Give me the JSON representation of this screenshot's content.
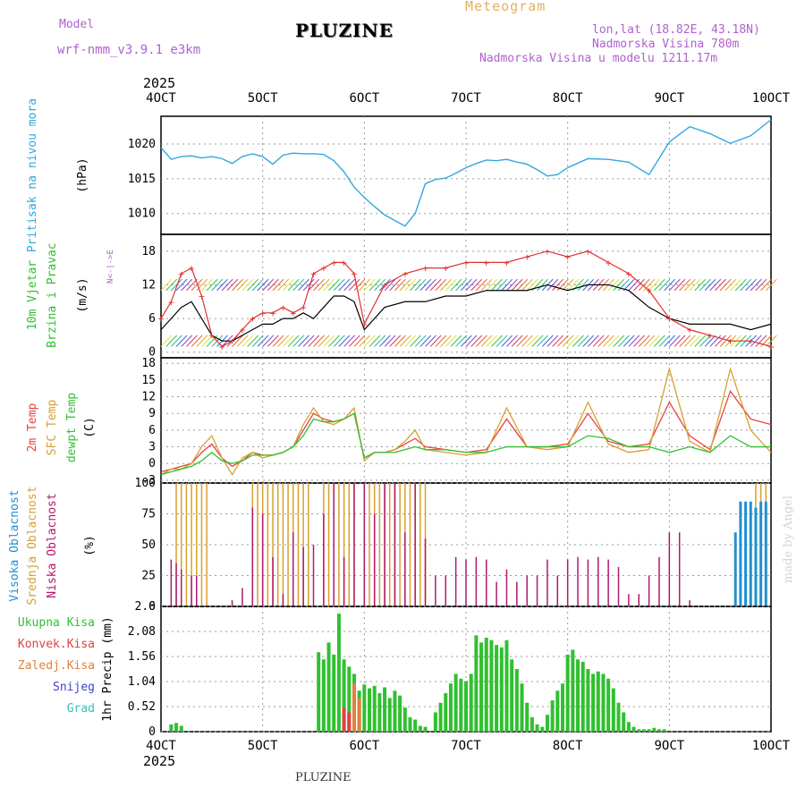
{
  "header": {
    "model_label": "Model",
    "model_name": "wrf-nmm_v3.9.1 e3km",
    "title": "PLUZINE",
    "subtitle": "Meteogram",
    "lonlat": "lon,lat (18.82E, 43.18N)",
    "elevation": "Nadmorska Visina 780m",
    "model_elevation": "Nadmorska Visina u modelu 1211.17m"
  },
  "footer": {
    "location": "PLUZINE",
    "watermark": "made by Angel"
  },
  "time_axis": {
    "year": "2025",
    "ticks": [
      "4OCT",
      "5OCT",
      "6OCT",
      "7OCT",
      "8OCT",
      "9OCT",
      "10OCT"
    ]
  },
  "colors": {
    "pressure": "#30a8e0",
    "wind_speed": "#000000",
    "gust": "#e03030",
    "t2m": "#e84040",
    "tsfc": "#d8a030",
    "dewpt": "#30c030",
    "cloud_high": "#2090d0",
    "cloud_mid": "#d8a030",
    "cloud_low": "#b01870",
    "precip_total": "#30c030",
    "precip_conv": "#e04040",
    "precip_frz": "#e08040",
    "snow": "#4040d0",
    "hail": "#30c0c0"
  },
  "chart_data": [
    {
      "id": "pressure",
      "type": "line",
      "title": "Pritisak na nivou mora",
      "ylabel": "(hPa)",
      "ylim": [
        1007,
        1024
      ],
      "yticks": [
        "1010",
        "1015",
        "1020"
      ],
      "yticks_values": [
        1010,
        1015,
        1020
      ],
      "series": [
        {
          "name": "MSLP",
          "x": [
            0,
            0.1,
            0.2,
            0.3,
            0.4,
            0.5,
            0.6,
            0.7,
            0.8,
            0.9,
            1,
            1.1,
            1.2,
            1.3,
            1.4,
            1.5,
            1.6,
            1.7,
            1.8,
            1.9,
            2,
            2.1,
            2.2,
            2.3,
            2.4,
            2.5,
            2.6,
            2.7,
            2.8,
            2.9,
            3,
            3.1,
            3.2,
            3.3,
            3.4,
            3.5,
            3.6,
            3.7,
            3.8,
            3.9,
            4,
            4.2,
            4.4,
            4.6,
            4.8,
            5,
            5.2,
            5.4,
            5.6,
            5.8,
            6
          ],
          "values": [
            1019.5,
            1017.8,
            1018.2,
            1018.3,
            1018.0,
            1018.2,
            1017.9,
            1017.2,
            1018.2,
            1018.6,
            1018.2,
            1017.1,
            1018.4,
            1018.7,
            1018.6,
            1018.6,
            1018.5,
            1017.6,
            1016.0,
            1013.8,
            1012.3,
            1011.0,
            1009.8,
            1009.0,
            1008.2,
            1010.0,
            1014.3,
            1014.9,
            1015.1,
            1015.8,
            1016.6,
            1017.2,
            1017.7,
            1017.6,
            1017.8,
            1017.4,
            1017.1,
            1016.3,
            1015.4,
            1015.6,
            1016.6,
            1017.9,
            1017.8,
            1017.4,
            1015.6,
            1020.3,
            1022.5,
            1021.5,
            1020.1,
            1021.2,
            1023.5
          ]
        }
      ]
    },
    {
      "id": "wind",
      "type": "line",
      "title": "10m Vjetar",
      "title2": "Brzina i Pravac",
      "ylabel": "(m/s)",
      "compass": "N<-|->E",
      "ylim": [
        -1,
        21
      ],
      "yticks": [
        "0",
        "6",
        "12",
        "18"
      ],
      "yticks_values": [
        0,
        6,
        12,
        18
      ],
      "series": [
        {
          "name": "speed",
          "x": [
            0,
            0.1,
            0.2,
            0.3,
            0.4,
            0.5,
            0.6,
            0.7,
            0.8,
            0.9,
            1,
            1.1,
            1.2,
            1.3,
            1.4,
            1.5,
            1.6,
            1.7,
            1.8,
            1.9,
            2,
            2.2,
            2.4,
            2.6,
            2.8,
            3,
            3.2,
            3.4,
            3.6,
            3.8,
            4,
            4.2,
            4.4,
            4.6,
            4.8,
            5,
            5.2,
            5.4,
            5.6,
            5.8,
            6
          ],
          "values": [
            4,
            6,
            8,
            9,
            6,
            3,
            2,
            2,
            3,
            4,
            5,
            5,
            6,
            6,
            7,
            6,
            8,
            10,
            10,
            9,
            4,
            8,
            9,
            9,
            10,
            10,
            11,
            11,
            11,
            12,
            11,
            12,
            12,
            11,
            8,
            6,
            5,
            5,
            5,
            4,
            5
          ]
        },
        {
          "name": "gust",
          "x": [
            0,
            0.1,
            0.2,
            0.3,
            0.4,
            0.5,
            0.6,
            0.7,
            0.8,
            0.9,
            1,
            1.1,
            1.2,
            1.3,
            1.4,
            1.5,
            1.6,
            1.7,
            1.8,
            1.9,
            2,
            2.2,
            2.4,
            2.6,
            2.8,
            3,
            3.2,
            3.4,
            3.6,
            3.8,
            4,
            4.2,
            4.4,
            4.6,
            4.8,
            5,
            5.2,
            5.4,
            5.6,
            5.8,
            6
          ],
          "values": [
            6,
            9,
            14,
            15,
            10,
            3,
            1,
            2,
            4,
            6,
            7,
            7,
            8,
            7,
            8,
            14,
            15,
            16,
            16,
            14,
            5,
            12,
            14,
            15,
            15,
            16,
            16,
            16,
            17,
            18,
            17,
            18,
            16,
            14,
            11,
            6,
            4,
            3,
            2,
            2,
            1
          ]
        }
      ]
    },
    {
      "id": "temperature",
      "type": "line",
      "titles": [
        "2m Temp",
        "SFC Temp",
        "dewpt Temp"
      ],
      "ylabel": "(C)",
      "ylim": [
        -3.5,
        19
      ],
      "yticks": [
        "-3",
        "0",
        "3",
        "6",
        "9",
        "12",
        "15",
        "18"
      ],
      "yticks_values": [
        -3,
        0,
        3,
        6,
        9,
        12,
        15,
        18
      ],
      "x": [
        0,
        0.1,
        0.2,
        0.3,
        0.4,
        0.5,
        0.6,
        0.7,
        0.8,
        0.9,
        1,
        1.1,
        1.2,
        1.3,
        1.4,
        1.5,
        1.6,
        1.7,
        1.8,
        1.9,
        2,
        2.1,
        2.2,
        2.3,
        2.4,
        2.5,
        2.6,
        2.8,
        3,
        3.2,
        3.4,
        3.6,
        3.8,
        4,
        4.2,
        4.4,
        4.6,
        4.8,
        5,
        5.2,
        5.4,
        5.6,
        5.8,
        6
      ],
      "series": [
        {
          "name": "t2m",
          "values": [
            -1.5,
            -1,
            -0.5,
            0,
            2,
            3.5,
            1,
            -0.5,
            0.5,
            2,
            1.5,
            1.5,
            2,
            3,
            6,
            9,
            8,
            7.5,
            8,
            9,
            1,
            2,
            2,
            2.5,
            3.5,
            4.5,
            3,
            2.5,
            2,
            2.5,
            8,
            3,
            3,
            3.5,
            9,
            4,
            3,
            3.5,
            11,
            5,
            2.5,
            13,
            8,
            7
          ]
        },
        {
          "name": "tsfc",
          "values": [
            -2,
            -1,
            -1,
            0,
            3,
            5,
            1,
            -2,
            1,
            2,
            1,
            1.5,
            2,
            3,
            7,
            10,
            7.5,
            7,
            8,
            10,
            0.5,
            2,
            2,
            2.5,
            4,
            6,
            2.5,
            2,
            1.5,
            2,
            10,
            3,
            2.5,
            3,
            11,
            3.5,
            2,
            2.5,
            17,
            4,
            2,
            17,
            6,
            2
          ]
        },
        {
          "name": "dewpt",
          "values": [
            -2,
            -1.5,
            -1,
            -0.5,
            0.5,
            2,
            0.5,
            0,
            0.5,
            1.5,
            1.5,
            1.5,
            2,
            3,
            5,
            8,
            7.5,
            7.5,
            8,
            9,
            1,
            2,
            2,
            2,
            2.5,
            3,
            2.5,
            2.5,
            2,
            2,
            3,
            3,
            3,
            3,
            5,
            4.5,
            3,
            3,
            2,
            3,
            2,
            5,
            3,
            3
          ]
        }
      ]
    },
    {
      "id": "clouds",
      "type": "bar",
      "titles": [
        "Visoka Oblacnost",
        "Srednja Oblacnost",
        "Niska Oblacnost"
      ],
      "ylabel": "(%)",
      "ylim": [
        0,
        100
      ],
      "yticks": [
        "0",
        "25",
        "50",
        "75",
        "100"
      ],
      "yticks_values": [
        0,
        25,
        50,
        75,
        100
      ],
      "series": [
        {
          "name": "mid",
          "x": [
            0.15,
            0.2,
            0.25,
            0.3,
            0.35,
            0.4,
            0.45,
            0.9,
            0.95,
            1.0,
            1.05,
            1.1,
            1.15,
            1.2,
            1.25,
            1.3,
            1.35,
            1.4,
            1.45,
            1.6,
            1.65,
            1.7,
            1.75,
            1.8,
            1.85,
            1.9,
            2.0,
            2.05,
            2.1,
            2.15,
            2.2,
            2.25,
            2.3,
            2.35,
            2.4,
            2.45,
            2.5,
            2.55,
            2.6,
            5.85,
            5.9,
            5.95
          ],
          "values": [
            100,
            100,
            100,
            100,
            100,
            100,
            100,
            100,
            100,
            100,
            100,
            100,
            100,
            100,
            100,
            100,
            100,
            100,
            100,
            100,
            100,
            100,
            100,
            100,
            100,
            100,
            100,
            100,
            100,
            100,
            100,
            100,
            100,
            100,
            100,
            100,
            100,
            100,
            100,
            100,
            100,
            100
          ]
        },
        {
          "name": "low",
          "x": [
            0.1,
            0.15,
            0.2,
            0.3,
            0.35,
            0.7,
            0.8,
            0.9,
            1.0,
            1.1,
            1.2,
            1.3,
            1.4,
            1.5,
            1.6,
            1.7,
            1.8,
            1.9,
            2.0,
            2.1,
            2.2,
            2.3,
            2.4,
            2.5,
            2.6,
            2.7,
            2.8,
            2.9,
            3.0,
            3.1,
            3.2,
            3.3,
            3.4,
            3.5,
            3.6,
            3.7,
            3.8,
            3.9,
            4.0,
            4.1,
            4.2,
            4.3,
            4.4,
            4.5,
            4.6,
            4.7,
            4.8,
            4.9,
            5.0,
            5.1,
            5.2
          ],
          "values": [
            38,
            35,
            30,
            25,
            25,
            5,
            15,
            80,
            75,
            40,
            10,
            60,
            48,
            50,
            75,
            100,
            40,
            100,
            100,
            75,
            100,
            100,
            60,
            100,
            55,
            25,
            25,
            40,
            38,
            40,
            38,
            20,
            30,
            20,
            25,
            25,
            38,
            25,
            38,
            40,
            38,
            40,
            38,
            32,
            10,
            10,
            25,
            40,
            60,
            60,
            5
          ]
        },
        {
          "name": "high",
          "x": [
            5.65,
            5.7,
            5.75,
            5.8,
            5.85,
            5.9,
            5.95
          ],
          "values": [
            60,
            85,
            85,
            85,
            80,
            85,
            85
          ]
        }
      ]
    },
    {
      "id": "precip",
      "type": "bar",
      "titles": [
        "Ukupna Kisa",
        "Konvek.Kisa",
        "Zaledj.Kisa",
        "Snijeg",
        "Grad"
      ],
      "ylabel": "1hr Precip (mm)",
      "ylim": [
        0,
        2.6
      ],
      "yticks": [
        "0",
        "0.52",
        "1.04",
        "1.56",
        "2.08",
        "2.6"
      ],
      "yticks_values": [
        0,
        0.52,
        1.04,
        1.56,
        2.08,
        2.6
      ],
      "series": [
        {
          "name": "total",
          "x": [
            0.1,
            0.15,
            0.2,
            1.55,
            1.6,
            1.65,
            1.7,
            1.75,
            1.8,
            1.85,
            1.9,
            1.95,
            2.0,
            2.05,
            2.1,
            2.15,
            2.2,
            2.25,
            2.3,
            2.35,
            2.4,
            2.45,
            2.5,
            2.55,
            2.6,
            2.7,
            2.75,
            2.8,
            2.85,
            2.9,
            2.95,
            3.0,
            3.05,
            3.1,
            3.15,
            3.2,
            3.25,
            3.3,
            3.35,
            3.4,
            3.45,
            3.5,
            3.55,
            3.6,
            3.65,
            3.7,
            3.75,
            3.8,
            3.85,
            3.9,
            3.95,
            4.0,
            4.05,
            4.1,
            4.15,
            4.2,
            4.25,
            4.3,
            4.35,
            4.4,
            4.45,
            4.5,
            4.55,
            4.6,
            4.65,
            4.7,
            4.75,
            4.8,
            4.85,
            4.9,
            4.95
          ],
          "values": [
            0.15,
            0.18,
            0.12,
            1.65,
            1.5,
            1.85,
            1.6,
            2.45,
            1.5,
            1.35,
            1.2,
            0.85,
            0.98,
            0.9,
            0.95,
            0.8,
            0.92,
            0.7,
            0.85,
            0.75,
            0.5,
            0.3,
            0.25,
            0.12,
            0.1,
            0.4,
            0.6,
            0.8,
            1.0,
            1.2,
            1.1,
            1.05,
            1.2,
            2.0,
            1.85,
            1.95,
            1.9,
            1.8,
            1.75,
            1.9,
            1.5,
            1.3,
            1.0,
            0.6,
            0.3,
            0.15,
            0.1,
            0.35,
            0.65,
            0.85,
            1.0,
            1.6,
            1.7,
            1.5,
            1.45,
            1.3,
            1.2,
            1.25,
            1.2,
            1.1,
            0.9,
            0.6,
            0.4,
            0.2,
            0.1,
            0.05,
            0.05,
            0.05,
            0.08,
            0.05,
            0.05
          ]
        },
        {
          "name": "convective",
          "x": [
            1.8,
            1.85
          ],
          "values": [
            0.5,
            0.4
          ]
        },
        {
          "name": "freezing",
          "x": [
            1.9,
            1.95
          ],
          "values": [
            1.0,
            0.7
          ]
        }
      ]
    }
  ]
}
